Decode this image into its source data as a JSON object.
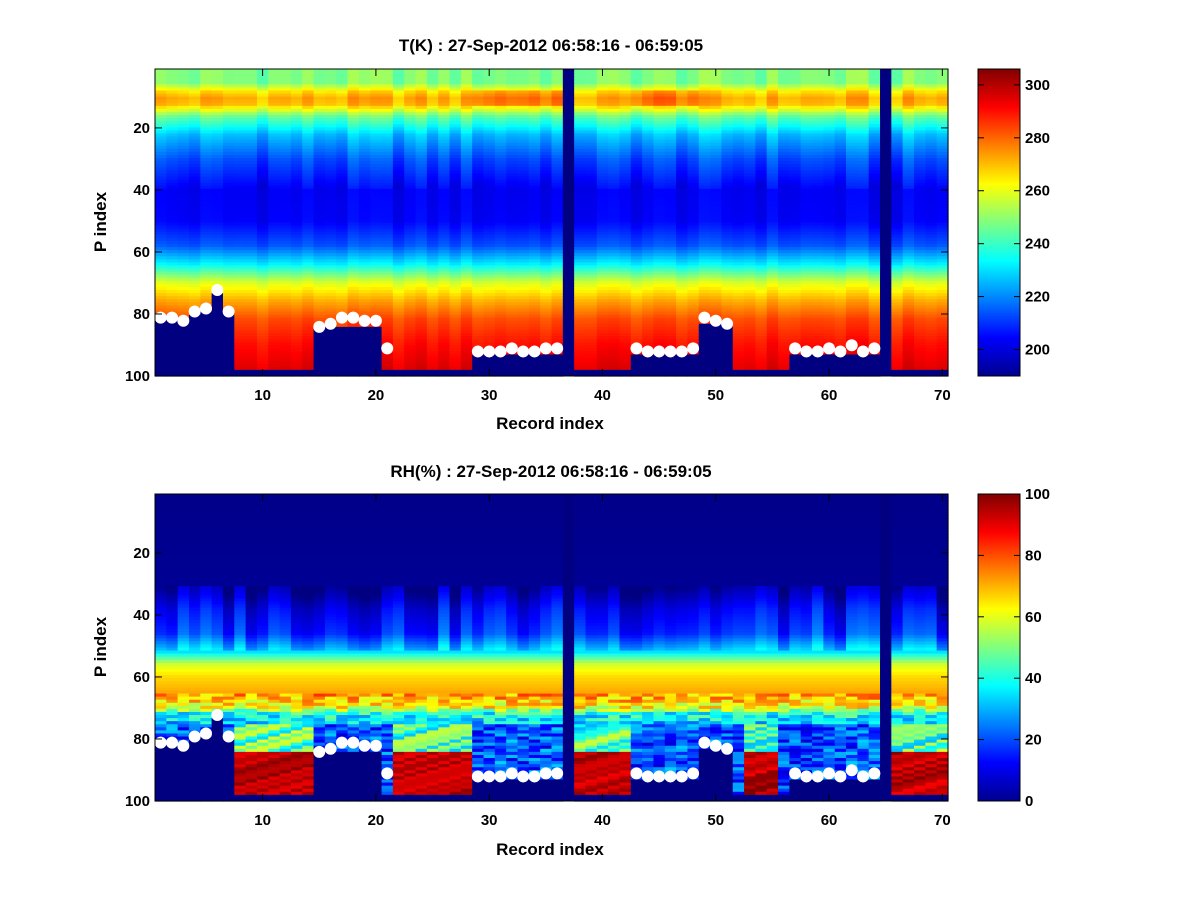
{
  "chart_data": [
    {
      "type": "heatmap",
      "title": "T(K) : 27-Sep-2012 06:58:16 - 06:59:05",
      "xlabel": "Record index",
      "ylabel": "P index",
      "xlim": [
        0.5,
        70.5
      ],
      "ylim": [
        1,
        100
      ],
      "x_ticks": [
        10,
        20,
        30,
        40,
        50,
        60,
        70
      ],
      "y_ticks": [
        20,
        40,
        60,
        80,
        100
      ],
      "colorbar": {
        "min": 190,
        "max": 306,
        "ticks": [
          200,
          220,
          240,
          260,
          280,
          300
        ]
      },
      "missing_records": [
        37,
        65
      ],
      "profile_segments": [
        {
          "records": [
            1,
            7
          ],
          "description": "stepped bottom cut-off"
        },
        {
          "records": [
            8,
            14
          ],
          "bottom_index": 98
        },
        {
          "records": [
            15,
            20
          ],
          "bottom_index": 84
        },
        {
          "records": [
            21,
            28
          ],
          "bottom_index": 98
        },
        {
          "records": [
            29,
            35
          ],
          "bottom_index": 93
        },
        {
          "records": [
            38,
            42
          ],
          "bottom_index": 98
        },
        {
          "records": [
            43,
            48
          ],
          "bottom_index": 93
        },
        {
          "records": [
            49,
            51
          ],
          "bottom_index": 83
        },
        {
          "records": [
            52,
            56
          ],
          "bottom_index": 98
        },
        {
          "records": [
            57,
            64
          ],
          "bottom_index": 93
        },
        {
          "records": [
            66,
            70
          ],
          "bottom_index": 98
        }
      ],
      "surface_markers": {
        "x": [
          1,
          2,
          3,
          4,
          5,
          6,
          7,
          15,
          16,
          17,
          18,
          19,
          20,
          21,
          29,
          30,
          31,
          32,
          33,
          34,
          35,
          36,
          43,
          44,
          45,
          46,
          47,
          48,
          49,
          50,
          51,
          57,
          58,
          59,
          60,
          61,
          62,
          63,
          64
        ],
        "y": [
          81.5,
          81.5,
          82.5,
          79.5,
          78.5,
          72.5,
          79.5,
          84.5,
          83.5,
          81.5,
          81.5,
          82.5,
          82.5,
          91.5,
          92.5,
          92.5,
          92.5,
          91.5,
          92.5,
          92.5,
          91.5,
          91.5,
          91.5,
          92.5,
          92.5,
          92.5,
          92.5,
          91.5,
          81.5,
          82.5,
          83.5,
          91.5,
          92.5,
          92.5,
          91.5,
          92.5,
          90.5,
          92.5,
          91.5
        ]
      }
    },
    {
      "type": "heatmap",
      "title": "RH(%) : 27-Sep-2012 06:58:16 - 06:59:05",
      "xlabel": "Record index",
      "ylabel": "P index",
      "xlim": [
        0.5,
        70.5
      ],
      "ylim": [
        1,
        100
      ],
      "x_ticks": [
        10,
        20,
        30,
        40,
        50,
        60,
        70
      ],
      "y_ticks": [
        20,
        40,
        60,
        80,
        100
      ],
      "colorbar": {
        "min": 0,
        "max": 100,
        "ticks": [
          0,
          20,
          40,
          60,
          80,
          100
        ]
      },
      "missing_records": [
        37,
        65
      ],
      "surface_markers": {
        "x": [
          1,
          2,
          3,
          4,
          5,
          6,
          7,
          15,
          16,
          17,
          18,
          19,
          20,
          21,
          29,
          30,
          31,
          32,
          33,
          34,
          35,
          36,
          43,
          44,
          45,
          46,
          47,
          48,
          49,
          50,
          51,
          57,
          58,
          59,
          60,
          61,
          62,
          63,
          64
        ],
        "y": [
          81.5,
          81.5,
          82.5,
          79.5,
          78.5,
          72.5,
          79.5,
          84.5,
          83.5,
          81.5,
          81.5,
          82.5,
          82.5,
          91.5,
          92.5,
          92.5,
          92.5,
          91.5,
          92.5,
          92.5,
          91.5,
          91.5,
          91.5,
          92.5,
          92.5,
          92.5,
          92.5,
          91.5,
          81.5,
          82.5,
          83.5,
          91.5,
          92.5,
          92.5,
          91.5,
          92.5,
          90.5,
          92.5,
          91.5
        ]
      }
    }
  ]
}
